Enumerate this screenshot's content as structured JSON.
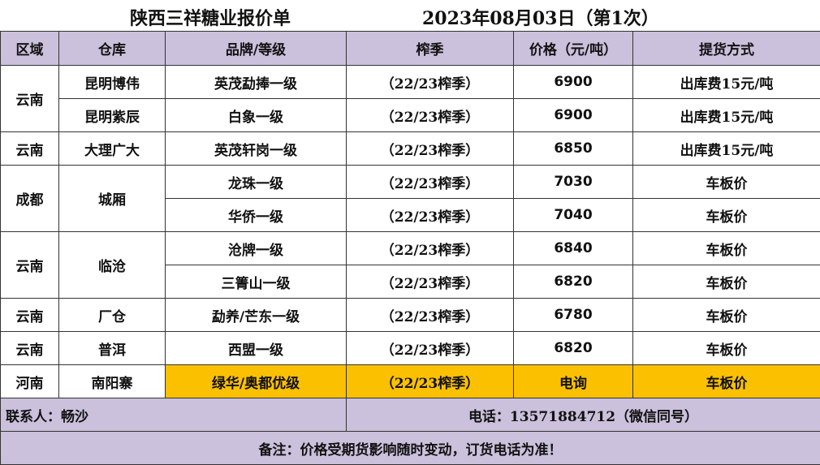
{
  "title": "陕西三祥糖业报价单",
  "date": "2023年08月03日（第1次）",
  "headers": [
    "区域",
    "仓库",
    "品牌/等级",
    "榨季",
    "价格（元/吨）",
    "提货方式"
  ],
  "rows": [
    {
      "region": "云南",
      "warehouse": "昆明博伟",
      "brand": "英茂勐捧一级",
      "season": "（22/23榨季）",
      "price": "6900",
      "delivery": "出库费15元/吨"
    },
    {
      "brand": "白象一级",
      "warehouse": "昆明紫辰",
      "season": "（22/23榨季）",
      "price": "6900",
      "delivery": "出库费15元/吨"
    },
    {
      "region": "云南",
      "warehouse": "大理广大",
      "brand": "英茂轩岗一级",
      "season": "（22/23榨季）",
      "price": "6850",
      "delivery": "出库费15元/吨"
    },
    {
      "region": "成都",
      "warehouse": "城厢",
      "brand": "龙珠一级",
      "season": "（22/23榨季）",
      "price": "7030",
      "delivery": "车板价"
    },
    {
      "brand": "华侨一级",
      "season": "（22/23榨季）",
      "price": "7040",
      "delivery": "车板价"
    },
    {
      "region": "云南",
      "warehouse": "临沧",
      "brand": "沧牌一级",
      "season": "（22/23榨季）",
      "price": "6840",
      "delivery": "车板价"
    },
    {
      "brand": "三箐山一级",
      "season": "（22/23榨季）",
      "price": "6820",
      "delivery": "车板价"
    },
    {
      "region": "云南",
      "warehouse": "厂仓",
      "brand": "勐养/芒东一级",
      "season": "（22/23榨季）",
      "price": "6780",
      "delivery": "车板价"
    },
    {
      "region": "云南",
      "warehouse": "普洱",
      "brand": "西盟一级",
      "season": "（22/23榨季）",
      "price": "6820",
      "delivery": "车板价"
    },
    {
      "region": "河南",
      "warehouse": "南阳寨",
      "brand": "绿华/奥都优级",
      "season": "（22/23榨季）",
      "price": "电询",
      "delivery": "车板价"
    }
  ],
  "contact": "联系人：畅沙",
  "phone": "电话：13571884712（微信同号）",
  "note": "备注：价格受期货影响随时变动，订货电话为准！",
  "colors": {
    "header_bg": "#cbc1dc",
    "highlight": "#fbc100"
  }
}
